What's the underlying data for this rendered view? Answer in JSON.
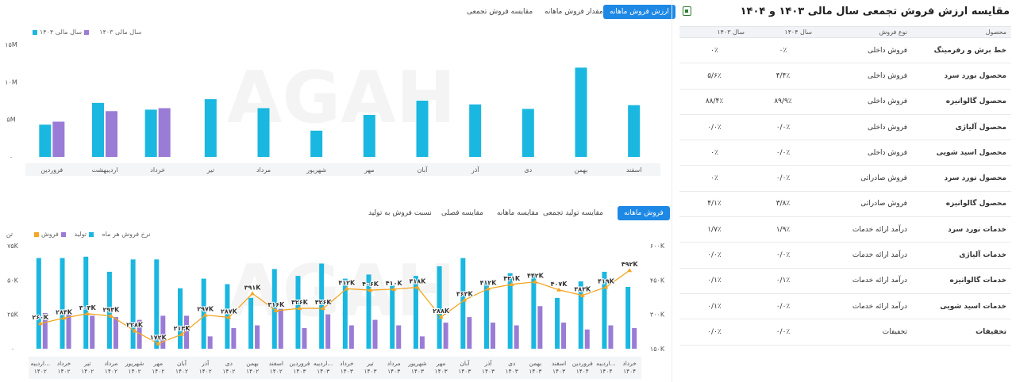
{
  "top_tabs": [
    "ارزش فروش ماهانه",
    "مقدار فروش ماهانه",
    "مقایسه فروش تجمعی"
  ],
  "bottom_tabs": [
    "فروش ماهانه",
    "مقایسه تولید تجمعی",
    "مقایسه ماهانه",
    "مقایسه فصلی",
    "نسبت فروش به تولید"
  ],
  "table": {
    "title": "مقایسه ارزش فروش تجمعی سال مالی ۱۴۰۳ و ۱۴۰۴",
    "headers": [
      "محصول",
      "نوع فروش",
      "سال ۱۴۰۴",
      "سال ۱۴۰۳"
    ],
    "rows": [
      [
        "خط برش و رفرمینگ",
        "فروش داخلی",
        "۰٪",
        "۰٪"
      ],
      [
        "محصول نورد سرد",
        "فروش داخلی",
        "۴/۴٪",
        "۵/۶٪"
      ],
      [
        "محصول گالوانیزه",
        "فروش داخلی",
        "۸۹/۹٪",
        "۸۸/۴٪"
      ],
      [
        "محصول آلیاژی",
        "فروش داخلی",
        "۰/۰٪",
        "۰/۰٪"
      ],
      [
        "محصول اسید شویی",
        "فروش داخلی",
        "۰/۰٪",
        "۰٪"
      ],
      [
        "محصول نورد سرد",
        "فروش صادراتی",
        "۰/۰٪",
        "۰٪"
      ],
      [
        "محصول گالوانیزه",
        "فروش صادراتی",
        "۳/۸٪",
        "۴/۱٪"
      ],
      [
        "خدمات نورد سرد",
        "درآمد ارائه خدمات",
        "۱/۹٪",
        "۱/۷٪"
      ],
      [
        "خدمات آلیاژی",
        "درآمد ارائه خدمات",
        "۰/۰٪",
        "۰/۰٪"
      ],
      [
        "خدمات گالوانیزه",
        "درآمد ارائه خدمات",
        "۰/۱٪",
        "۰/۱٪"
      ],
      [
        "خدمات اسید شویی",
        "درآمد ارائه خدمات",
        "۰/۰٪",
        "۰/۱٪"
      ],
      [
        "تخفیفات",
        "تخفیفات",
        "۰/۰٪",
        "۰/۰٪"
      ]
    ]
  },
  "colors": {
    "blue": "#1ab7e0",
    "purple": "#9a7bd6",
    "orange": "#f5a623",
    "accent": "#1e88e5"
  },
  "chart_data": [
    {
      "type": "bar",
      "categories": [
        "فروردین",
        "اردیبهشت",
        "خرداد",
        "تیر",
        "مرداد",
        "شهریور",
        "مهر",
        "آبان",
        "آذر",
        "دی",
        "بهمن",
        "اسفند"
      ],
      "series": [
        {
          "name": "سال مالی ۱۴۰۳",
          "color": "#1ab7e0",
          "values": [
            4.3,
            7.2,
            6.3,
            7.7,
            6.5,
            3.5,
            5.6,
            7.5,
            7.0,
            6.4,
            11.9,
            6.9
          ]
        },
        {
          "name": "سال مالی ۱۴۰۴",
          "color": "#9a7bd6",
          "values": [
            4.7,
            6.1,
            6.5,
            null,
            null,
            null,
            null,
            null,
            null,
            null,
            null,
            null
          ]
        }
      ],
      "yticks": [
        "۱۵M",
        "۱۰M",
        "۵M",
        "۰"
      ],
      "ylim": [
        0,
        15
      ],
      "legend_placement": "top-left"
    },
    {
      "type": "bar",
      "categories": [
        "اردیبه... ۱۴۰۲",
        "خرداد ۱۴۰۲",
        "تیر ۱۴۰۲",
        "مرداد ۱۴۰۲",
        "شهریور ۱۴۰۲",
        "مهر ۱۴۰۲",
        "آبان ۱۴۰۲",
        "آذر ۱۴۰۲",
        "دی ۱۴۰۲",
        "بهمن ۱۴۰۲",
        "اسفند ۱۴۰۲",
        "فروردین ۱۴۰۳",
        "اردیبه... ۱۴۰۳",
        "خرداد ۱۴۰۳",
        "تیر ۱۴۰۳",
        "مرداد ۱۴۰۳",
        "شهریور ۱۴۰۳",
        "مهر ۱۴۰۳",
        "آبان ۱۴۰۳",
        "آذر ۱۴۰۳",
        "دی ۱۴۰۳",
        "بهمن ۱۴۰۳",
        "اسفند ۱۴۰۳",
        "فروردین ۱۴۰۴",
        "اردیبه... ۱۴۰۴",
        "خرداد ۱۴۰۴"
      ],
      "series": [
        {
          "name": "تولید",
          "color": "#1ab7e0",
          "values": [
            66,
            66,
            67,
            56,
            65,
            65,
            44,
            51,
            47,
            37,
            58,
            53,
            62,
            51,
            54,
            46,
            53,
            60,
            66,
            50,
            55,
            53,
            37,
            49,
            56,
            45
          ]
        },
        {
          "name": "فروش",
          "color": "#9a7bd6",
          "values": [
            26,
            25,
            24,
            23,
            21,
            24,
            24,
            9,
            15,
            17,
            29,
            15,
            25,
            17,
            21,
            17,
            9,
            19,
            23,
            19,
            17,
            31,
            19,
            14,
            17,
            15
          ]
        },
        {
          "name": "نرخ فروش هر ماه",
          "color": "#f5a623",
          "axis": "right",
          "values": [
            260,
            284,
            303,
            293,
            228,
            172,
            213,
            297,
            287,
            391,
            316,
            326,
            326,
            412,
            406,
            410,
            418,
            288,
            363,
            412,
            431,
            442,
            407,
            383,
            419,
            492
          ]
        }
      ],
      "point_labels": [
        "۲۶۰K",
        "۲۸۴K",
        "۳۰۳K",
        "۲۹۳K",
        "۲۲۸K",
        "۱۷۲K",
        "۲۱۳K",
        "۲۹۷K",
        "۲۸۷K",
        "۳۹۱K",
        "۳۱۶K",
        "۳۲۶K",
        "۳۲۶K",
        "۴۱۲K",
        "۴۰۶K",
        "۴۱۰K",
        "۴۱۸K",
        "۲۸۸K",
        "۳۶۳K",
        "۴۱۲K",
        "۴۳۱K",
        "۴۴۲K",
        "۴۰۷K",
        "۳۸۳K",
        "۴۱۹K",
        "۴۹۲K"
      ],
      "ylim_left": [
        0,
        75
      ],
      "ylim_right": [
        150,
        600
      ],
      "yticks_left": [
        "۷۵K",
        "۵۰K",
        "۲۵K",
        "۰"
      ],
      "yticks_right": [
        "۶۰۰K",
        "۴۵۰K",
        "۳۰۰K",
        "۱۵۰K"
      ],
      "ylabel_left": "تن",
      "legend_placement": "top-left"
    }
  ]
}
